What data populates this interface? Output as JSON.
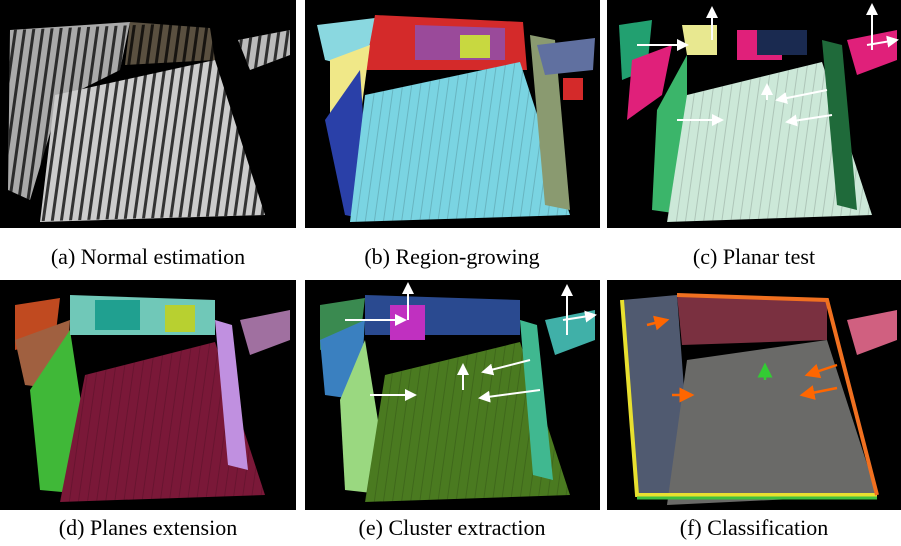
{
  "panels": [
    {
      "caption": "(a) Normal estimation"
    },
    {
      "caption": "(b) Region-growing"
    },
    {
      "caption": "(c) Planar test"
    },
    {
      "caption": "(d) Planes extension"
    },
    {
      "caption": "(e) Cluster extraction"
    },
    {
      "caption": "(f) Classification"
    }
  ]
}
